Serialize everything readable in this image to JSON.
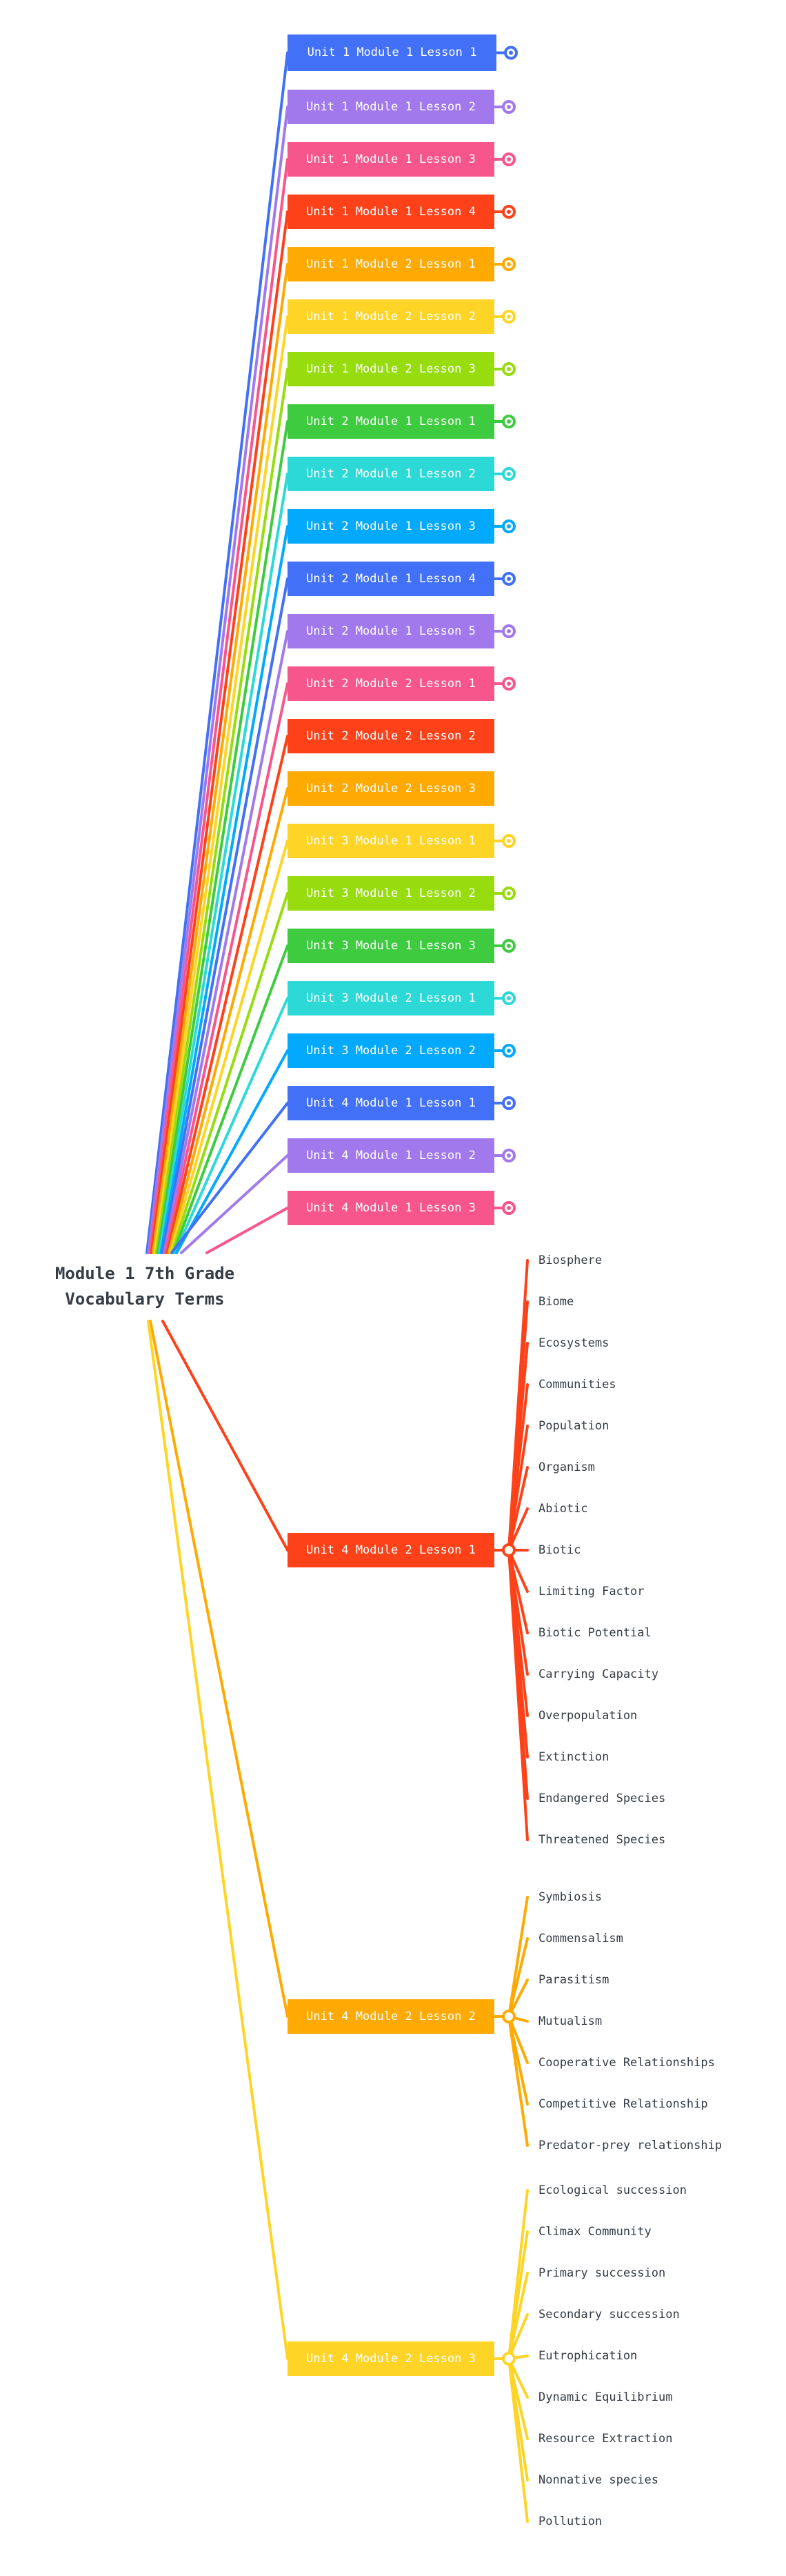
{
  "root": {
    "title": "Module 1 7th Grade\nVocabulary Terms"
  },
  "colors": {
    "blue": "#4271f7",
    "purple": "#a179ed",
    "pink": "#f6568b",
    "red": "#fd421a",
    "orange": "#feaa02",
    "yellow": "#fed426",
    "lime": "#97dc0f",
    "green": "#3ecb40",
    "cyan": "#2dd9d7",
    "sky": "#02a9fc",
    "text": "#353c44"
  },
  "collapsed_topics": [
    {
      "label": "Unit 1 Module 1 Lesson 1",
      "color": "blue",
      "has_children": true
    },
    {
      "label": "Unit 1 Module 1 Lesson 2",
      "color": "purple",
      "has_children": true
    },
    {
      "label": "Unit 1 Module 1 Lesson 3",
      "color": "pink",
      "has_children": true
    },
    {
      "label": "Unit 1 Module 1 Lesson 4",
      "color": "red",
      "has_children": true
    },
    {
      "label": "Unit 1 Module 2 Lesson 1",
      "color": "orange",
      "has_children": true
    },
    {
      "label": "Unit 1 Module 2 Lesson 2",
      "color": "yellow",
      "has_children": true
    },
    {
      "label": "Unit 1 Module 2 Lesson 3",
      "color": "lime",
      "has_children": true
    },
    {
      "label": "Unit 2 Module 1 Lesson 1",
      "color": "green",
      "has_children": true
    },
    {
      "label": "Unit 2 Module 1 Lesson 2",
      "color": "cyan",
      "has_children": true
    },
    {
      "label": "Unit 2 Module 1 Lesson 3",
      "color": "sky",
      "has_children": true
    },
    {
      "label": "Unit 2 Module 1 Lesson 4",
      "color": "blue",
      "has_children": true
    },
    {
      "label": "Unit 2 Module 1 Lesson 5",
      "color": "purple",
      "has_children": true
    },
    {
      "label": "Unit 2 Module 2 Lesson 1",
      "color": "pink",
      "has_children": true
    },
    {
      "label": "Unit 2 Module 2 Lesson 2",
      "color": "red",
      "has_children": false
    },
    {
      "label": "Unit 2 Module 2 Lesson 3",
      "color": "orange",
      "has_children": false
    },
    {
      "label": "Unit 3 Module 1 Lesson 1",
      "color": "yellow",
      "has_children": true
    },
    {
      "label": "Unit 3 Module 1 Lesson 2",
      "color": "lime",
      "has_children": true
    },
    {
      "label": "Unit 3 Module 1 Lesson 3",
      "color": "green",
      "has_children": true
    },
    {
      "label": "Unit 3 Module 2 Lesson 1",
      "color": "cyan",
      "has_children": true
    },
    {
      "label": "Unit 3 Module 2 Lesson 2",
      "color": "sky",
      "has_children": true
    },
    {
      "label": "Unit 4 Module 1 Lesson 1",
      "color": "blue",
      "has_children": true
    },
    {
      "label": "Unit 4 Module 1 Lesson 2",
      "color": "purple",
      "has_children": true
    },
    {
      "label": "Unit 4 Module 1 Lesson 3",
      "color": "pink",
      "has_children": true
    }
  ],
  "expanded_topics": [
    {
      "label": "Unit 4 Module 2 Lesson 1",
      "color": "red",
      "children": [
        "Biosphere",
        "Biome",
        "Ecosystems",
        "Communities",
        "Population",
        "Organism",
        "Abiotic",
        "Biotic",
        "Limiting Factor",
        "Biotic Potential",
        "Carrying Capacity",
        "Overpopulation",
        "Extinction",
        "Endangered Species",
        "Threatened Species"
      ]
    },
    {
      "label": "Unit 4 Module 2 Lesson 2",
      "color": "orange",
      "children": [
        "Symbiosis",
        "Commensalism",
        "Parasitism",
        "Mutualism",
        "Cooperative Relationships",
        "Competitive Relationship",
        "Predator-prey relationship"
      ]
    },
    {
      "label": "Unit 4 Module 2 Lesson 3",
      "color": "yellow",
      "children": [
        "Ecological succession",
        "Climax Community",
        "Primary succession",
        "Secondary succession",
        "Eutrophication",
        "Dynamic Equilibrium",
        "Resource Extraction",
        "Nonnative species",
        "Pollution"
      ]
    }
  ]
}
